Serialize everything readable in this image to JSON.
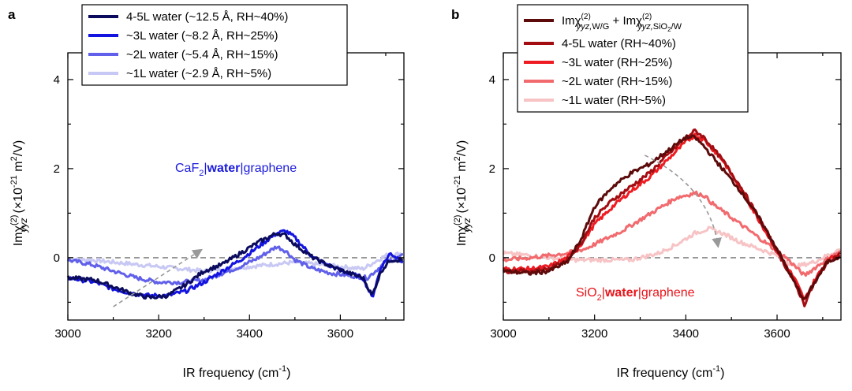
{
  "panels": {
    "a": {
      "label": "a",
      "annotation": {
        "pre": "CaF",
        "sub": "2",
        "mid": "|",
        "bold": "water",
        "post": "|graphene"
      },
      "color": "#1b1bdc"
    },
    "b": {
      "label": "b",
      "annotation": {
        "pre": "SiO",
        "sub": "2",
        "mid": "|",
        "bold": "water",
        "post": "|graphene"
      },
      "color": "#e8141a",
      "legend_first": {
        "a": "Imχ",
        "sup": "(2)",
        "sub1": "yyz,",
        "sub1b": "W/G",
        "plus": " + Imχ",
        "sub2": "yyz,",
        "sub2b": "SiO",
        "sub2c": "2",
        "sub2d": "/W"
      }
    }
  },
  "axes": {
    "xlabel": "IR frequency (cm",
    "xlabel_sup": "-1",
    "xlabel_end": ")",
    "ylabel": {
      "pre": "Imχ",
      "sup": "(2)",
      "sub": "yyz",
      "unit": "(×10",
      "unit_sup": "-21",
      "unit_post": " m",
      "unit_sup2": "2",
      "unit_end": "/V)"
    }
  },
  "chart_data": [
    {
      "type": "line",
      "title": "",
      "xlabel": "IR frequency (cm-1)",
      "ylabel": "Imχ(2)yyz (×10-21 m2/V)",
      "xlim": [
        3000,
        3740
      ],
      "ylim": [
        -1.4,
        4.6
      ],
      "xticks": [
        "3000",
        "3200",
        "3400",
        "3600"
      ],
      "yticks": [
        "0",
        "2",
        "4"
      ],
      "series": [
        {
          "name": "4-5L water (~12.5 Å, RH~40%)",
          "color": "#0b0b5e",
          "x": [
            3000,
            3060,
            3100,
            3140,
            3180,
            3220,
            3260,
            3300,
            3340,
            3380,
            3420,
            3460,
            3480,
            3500,
            3540,
            3580,
            3620,
            3650,
            3670,
            3690,
            3710,
            3740
          ],
          "y": [
            -0.45,
            -0.5,
            -0.65,
            -0.8,
            -0.9,
            -0.85,
            -0.6,
            -0.3,
            -0.15,
            0.1,
            0.35,
            0.55,
            0.5,
            0.3,
            0.0,
            -0.2,
            -0.35,
            -0.45,
            -0.85,
            -0.3,
            -0.05,
            -0.05
          ]
        },
        {
          "name": "~3L water (~8.2 Å, RH~25%)",
          "color": "#1414e0",
          "x": [
            3000,
            3060,
            3100,
            3140,
            3180,
            3220,
            3260,
            3300,
            3340,
            3380,
            3420,
            3460,
            3480,
            3500,
            3540,
            3580,
            3620,
            3650,
            3670,
            3690,
            3710,
            3740
          ],
          "y": [
            -0.45,
            -0.55,
            -0.7,
            -0.8,
            -0.85,
            -0.85,
            -0.75,
            -0.55,
            -0.3,
            -0.05,
            0.25,
            0.55,
            0.6,
            0.45,
            0.0,
            -0.2,
            -0.35,
            -0.45,
            -0.9,
            -0.2,
            0.1,
            -0.1
          ]
        },
        {
          "name": "~2L water (~5.4 Å, RH~15%)",
          "color": "#6060ea",
          "x": [
            3000,
            3050,
            3100,
            3150,
            3200,
            3250,
            3300,
            3340,
            3380,
            3420,
            3460,
            3480,
            3500,
            3540,
            3580,
            3620,
            3660,
            3700,
            3740
          ],
          "y": [
            -0.05,
            -0.15,
            -0.3,
            -0.45,
            -0.55,
            -0.55,
            -0.5,
            -0.35,
            -0.2,
            0.0,
            0.25,
            0.15,
            -0.05,
            -0.25,
            -0.35,
            -0.4,
            -0.45,
            -0.1,
            0.05
          ]
        },
        {
          "name": "~1L water (~2.9 Å, RH~5%)",
          "color": "#c8c8f4",
          "x": [
            3000,
            3050,
            3100,
            3150,
            3200,
            3250,
            3300,
            3350,
            3400,
            3450,
            3500,
            3550,
            3600,
            3650,
            3700,
            3740
          ],
          "y": [
            -0.05,
            -0.05,
            -0.1,
            -0.15,
            -0.2,
            -0.25,
            -0.3,
            -0.25,
            -0.2,
            -0.15,
            -0.1,
            -0.15,
            -0.2,
            -0.25,
            0.05,
            0.1
          ]
        }
      ],
      "legend": "top-left"
    },
    {
      "type": "line",
      "title": "",
      "xlabel": "IR frequency (cm-1)",
      "ylabel": "Imχ(2)yyz (×10-21 m2/V)",
      "xlim": [
        3000,
        3740
      ],
      "ylim": [
        -1.4,
        4.6
      ],
      "xticks": [
        "3000",
        "3200",
        "3400",
        "3600"
      ],
      "yticks": [
        "0",
        "2",
        "4"
      ],
      "series": [
        {
          "name": "Imχ(2)yyz, W/G + Imχ(2)yyz, SiO2/W",
          "color": "#5c0a0a",
          "x": [
            3000,
            3060,
            3100,
            3140,
            3170,
            3200,
            3240,
            3280,
            3320,
            3360,
            3400,
            3420,
            3440,
            3480,
            3520,
            3560,
            3600,
            3640,
            3660,
            3680,
            3710,
            3740
          ],
          "y": [
            -0.3,
            -0.35,
            -0.3,
            -0.1,
            0.4,
            1.15,
            1.6,
            1.9,
            2.1,
            2.4,
            2.7,
            2.7,
            2.5,
            2.0,
            1.5,
            0.9,
            0.2,
            -0.6,
            -0.95,
            -0.6,
            -0.1,
            0.05
          ]
        },
        {
          "name": "4-5L water (RH~40%)",
          "color": "#a30d12",
          "x": [
            3000,
            3060,
            3100,
            3140,
            3170,
            3200,
            3240,
            3280,
            3320,
            3360,
            3400,
            3420,
            3440,
            3480,
            3520,
            3560,
            3600,
            3640,
            3660,
            3680,
            3710,
            3740
          ],
          "y": [
            -0.3,
            -0.3,
            -0.25,
            -0.05,
            0.3,
            0.9,
            1.3,
            1.6,
            1.9,
            2.3,
            2.7,
            2.85,
            2.7,
            2.2,
            1.6,
            0.9,
            0.15,
            -0.6,
            -1.05,
            -0.6,
            -0.1,
            0.1
          ]
        },
        {
          "name": "~3L water (RH~25%)",
          "color": "#ee1c22",
          "x": [
            3000,
            3060,
            3100,
            3140,
            3170,
            3200,
            3240,
            3280,
            3320,
            3360,
            3400,
            3420,
            3440,
            3480,
            3520,
            3560,
            3600,
            3640,
            3660,
            3680,
            3710,
            3740
          ],
          "y": [
            -0.25,
            -0.25,
            -0.2,
            0.0,
            0.3,
            0.75,
            1.15,
            1.5,
            1.8,
            2.2,
            2.6,
            2.75,
            2.65,
            2.2,
            1.55,
            0.85,
            0.15,
            -0.5,
            -0.95,
            -0.55,
            -0.05,
            0.1
          ]
        },
        {
          "name": "~2L water (RH~15%)",
          "color": "#f16a6e",
          "x": [
            3000,
            3060,
            3100,
            3140,
            3180,
            3220,
            3260,
            3300,
            3340,
            3380,
            3420,
            3440,
            3460,
            3500,
            3540,
            3580,
            3620,
            3660,
            3700,
            3740
          ],
          "y": [
            -0.05,
            0.0,
            0.05,
            0.1,
            0.2,
            0.4,
            0.6,
            0.85,
            1.1,
            1.35,
            1.45,
            1.4,
            1.2,
            0.9,
            0.6,
            0.3,
            0.0,
            -0.4,
            -0.1,
            0.15
          ]
        },
        {
          "name": "~1L water (RH~5%)",
          "color": "#f7c3c5",
          "x": [
            3000,
            3060,
            3100,
            3160,
            3220,
            3280,
            3340,
            3380,
            3420,
            3450,
            3480,
            3520,
            3560,
            3600,
            3640,
            3680,
            3740
          ],
          "y": [
            0.1,
            0.05,
            0.0,
            -0.05,
            -0.05,
            -0.05,
            0.1,
            0.3,
            0.55,
            0.65,
            0.55,
            0.35,
            0.2,
            0.05,
            -0.2,
            -0.1,
            0.2
          ]
        }
      ],
      "legend": "top-left"
    }
  ]
}
